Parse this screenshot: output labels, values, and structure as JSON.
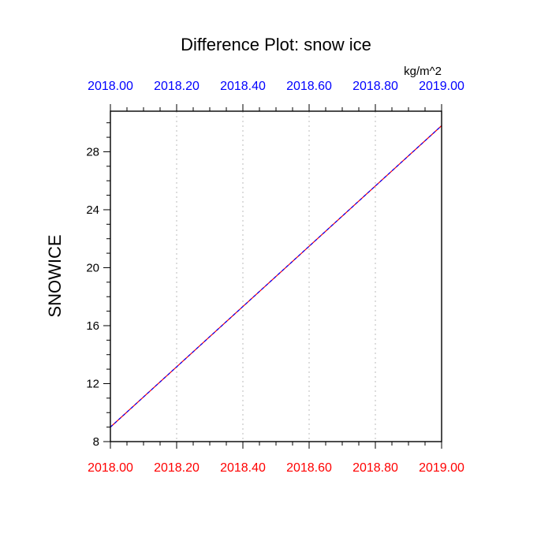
{
  "chart_data": {
    "type": "line",
    "title": "Difference Plot: snow ice",
    "units_label": "kg/m^2",
    "ylabel": "SNOWICE",
    "xlabel": "",
    "xlim": [
      2018.0,
      2019.0
    ],
    "ylim": [
      8,
      30.8
    ],
    "x_ticks": [
      2018.0,
      2018.2,
      2018.4,
      2018.6,
      2018.8,
      2019.0
    ],
    "x_tick_labels": [
      "2018.00",
      "2018.20",
      "2018.40",
      "2018.60",
      "2018.80",
      "2019.00"
    ],
    "y_ticks": [
      8,
      12,
      16,
      20,
      24,
      28
    ],
    "y_tick_labels": [
      "8",
      "12",
      "16",
      "20",
      "24",
      "28"
    ],
    "grid": "vertical dotted",
    "series": [
      {
        "x": [
          2018.0,
          2019.0
        ],
        "values": [
          9.0,
          29.8
        ],
        "color": "#ff0000",
        "style": "solid"
      },
      {
        "x": [
          2018.0,
          2019.0
        ],
        "values": [
          9.0,
          29.8
        ],
        "color": "#0000ff",
        "style": "dashed"
      }
    ],
    "colors": {
      "top_axis_labels": "#0000ff",
      "bottom_axis_labels": "#ff0000",
      "grid": "#bbbbbb",
      "frame": "#000000"
    }
  }
}
